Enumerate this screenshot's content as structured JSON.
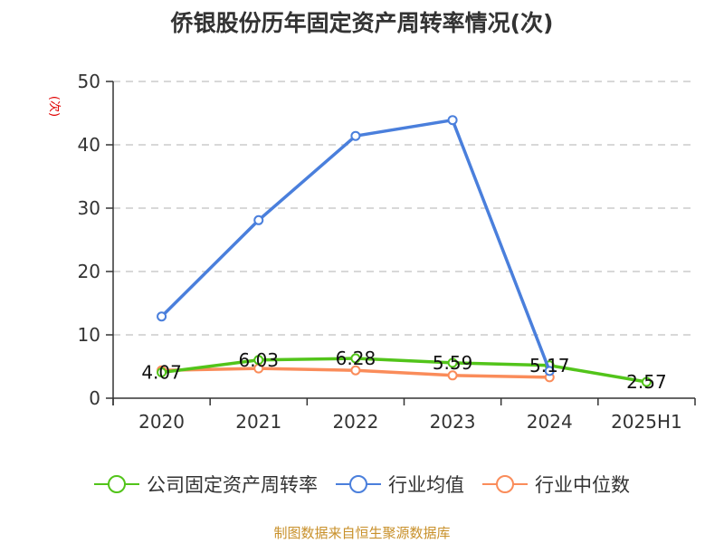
{
  "title": "侨银股份历年固定资产周转率情况(次)",
  "unit_label": "(次)",
  "source": "制图数据来自恒生聚源数据库",
  "legend": [
    {
      "label": "公司固定资产周转率",
      "color": "#52c41a"
    },
    {
      "label": "行业均值",
      "color": "#4a7fdc"
    },
    {
      "label": "行业中位数",
      "color": "#fa8c5a"
    }
  ],
  "chart_data": {
    "type": "line",
    "title": "侨银股份历年固定资产周转率情况(次)",
    "xlabel": "",
    "ylabel": "(次)",
    "ylim": [
      0,
      50
    ],
    "yticks": [
      0,
      10,
      20,
      30,
      40,
      50
    ],
    "grid": true,
    "legend_position": "bottom",
    "categories": [
      "2020",
      "2021",
      "2022",
      "2023",
      "2024",
      "2025H1"
    ],
    "series": [
      {
        "name": "公司固定资产周转率",
        "color": "#52c41a",
        "values": [
          4.07,
          6.03,
          6.28,
          5.59,
          5.17,
          2.57
        ],
        "labels": [
          "4.07",
          "6.03",
          "6.28",
          "5.59",
          "5.17",
          "2.57"
        ]
      },
      {
        "name": "行业均值",
        "color": "#4a7fdc",
        "values": [
          12.9,
          28.1,
          41.4,
          43.9,
          4.3,
          null
        ]
      },
      {
        "name": "行业中位数",
        "color": "#fa8c5a",
        "values": [
          4.4,
          4.7,
          4.4,
          3.6,
          3.3,
          null
        ]
      }
    ]
  }
}
